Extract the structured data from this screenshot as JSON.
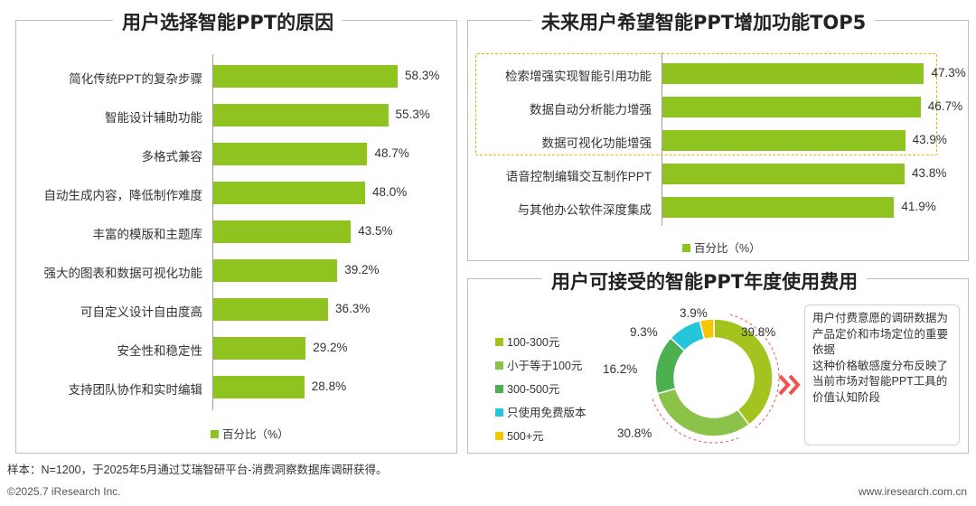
{
  "chart_data": [
    {
      "type": "bar",
      "title": "用户选择智能PPT的原因",
      "categories": [
        "简化传统PPT的复杂步骤",
        "智能设计辅助功能",
        "多格式兼容",
        "自动生成内容，降低制作难度",
        "丰富的模版和主题库",
        "强大的图表和数据可视化功能",
        "可自定义设计自由度高",
        "安全性和稳定性",
        "支持团队协作和实时编辑"
      ],
      "values": [
        58.3,
        55.3,
        48.7,
        48.0,
        43.5,
        39.2,
        36.3,
        29.2,
        28.8
      ],
      "labels": [
        "58.3%",
        "55.3%",
        "48.7%",
        "48.0%",
        "43.5%",
        "39.2%",
        "36.3%",
        "29.2%",
        "28.8%"
      ],
      "series": [
        {
          "name": "百分比（%）"
        }
      ],
      "orientation": "horizontal"
    },
    {
      "type": "bar",
      "title": "未来用户希望智能PPT增加功能TOP5",
      "categories": [
        "检索增强实现智能引用功能",
        "数据自动分析能力增强",
        "数据可视化功能增强",
        "语音控制编辑交互制作PPT",
        "与其他办公软件深度集成"
      ],
      "values": [
        47.3,
        46.7,
        43.9,
        43.8,
        41.9
      ],
      "labels": [
        "47.3%",
        "46.7%",
        "43.9%",
        "43.8%",
        "41.9%"
      ],
      "series": [
        {
          "name": "百分比（%）"
        }
      ],
      "orientation": "horizontal",
      "highlighted_top": 3
    },
    {
      "type": "pie",
      "title": "用户可接受的智能PPT年度使用费用",
      "categories": [
        "100-300元",
        "小于等于100元",
        "300-500元",
        "只使用免费版本",
        "500+元"
      ],
      "values": [
        39.8,
        30.8,
        16.2,
        9.3,
        3.9
      ],
      "labels": [
        "39.8%",
        "30.8%",
        "16.2%",
        "9.3%",
        "3.9%"
      ],
      "colors": [
        "#a4c31e",
        "#8bc34a",
        "#4caf50",
        "#26c6da",
        "#f6c700"
      ]
    }
  ],
  "colors": {
    "bar": "#8fc31f",
    "highlight_border": "#f0b400",
    "arrow": "#ef5350"
  },
  "note_text": "用户付费意愿的调研数据为产品定价和市场定位的重要依据\n这种价格敏感度分布反映了当前市场对智能PPT工具的价值认知阶段",
  "footnote": "样本：N=1200，于2025年5月通过艾瑞智研平台-消费洞察数据库调研获得。",
  "copyright": "©2025.7 iResearch Inc.",
  "website": "www.iresearch.com.cn"
}
